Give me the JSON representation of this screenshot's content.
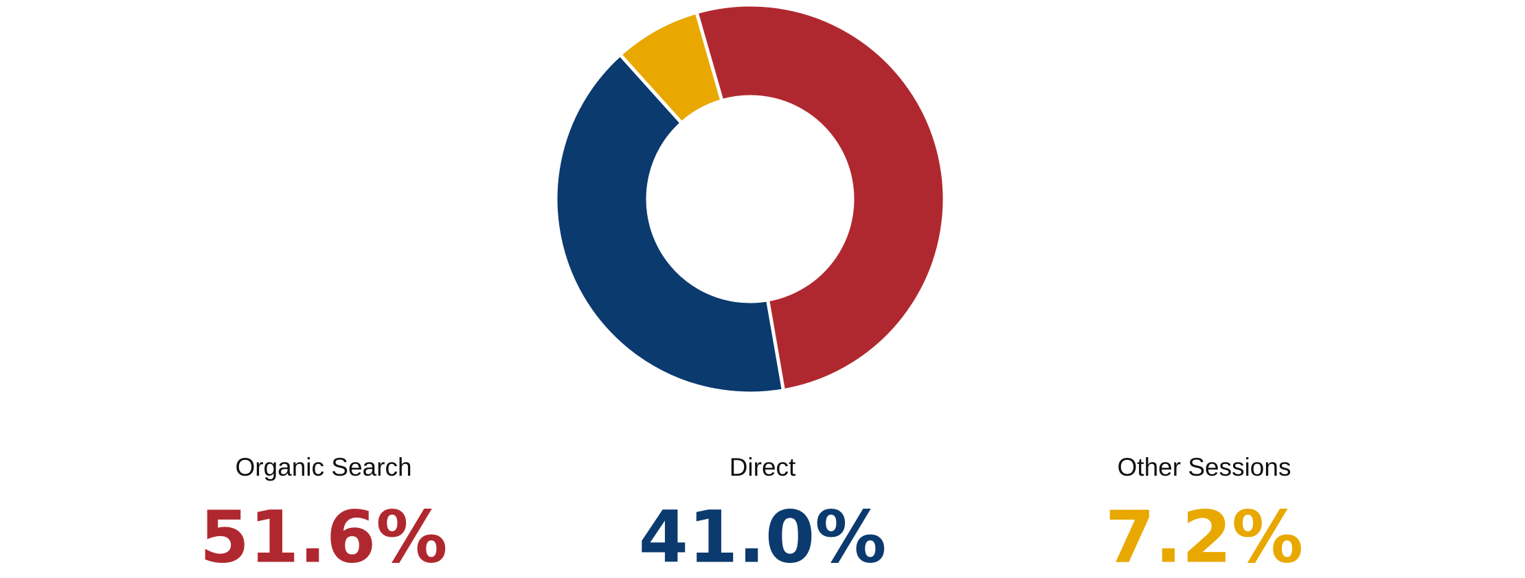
{
  "chart_data": {
    "type": "pie",
    "categories": [
      "Organic Search",
      "Direct",
      "Other Sessions"
    ],
    "values": [
      51.6,
      41.0,
      7.2
    ],
    "value_labels": [
      "51.6%",
      "41.0%",
      "7.2%"
    ],
    "colors": [
      "#b0282f",
      "#0b3a6e",
      "#e8a800"
    ]
  }
}
